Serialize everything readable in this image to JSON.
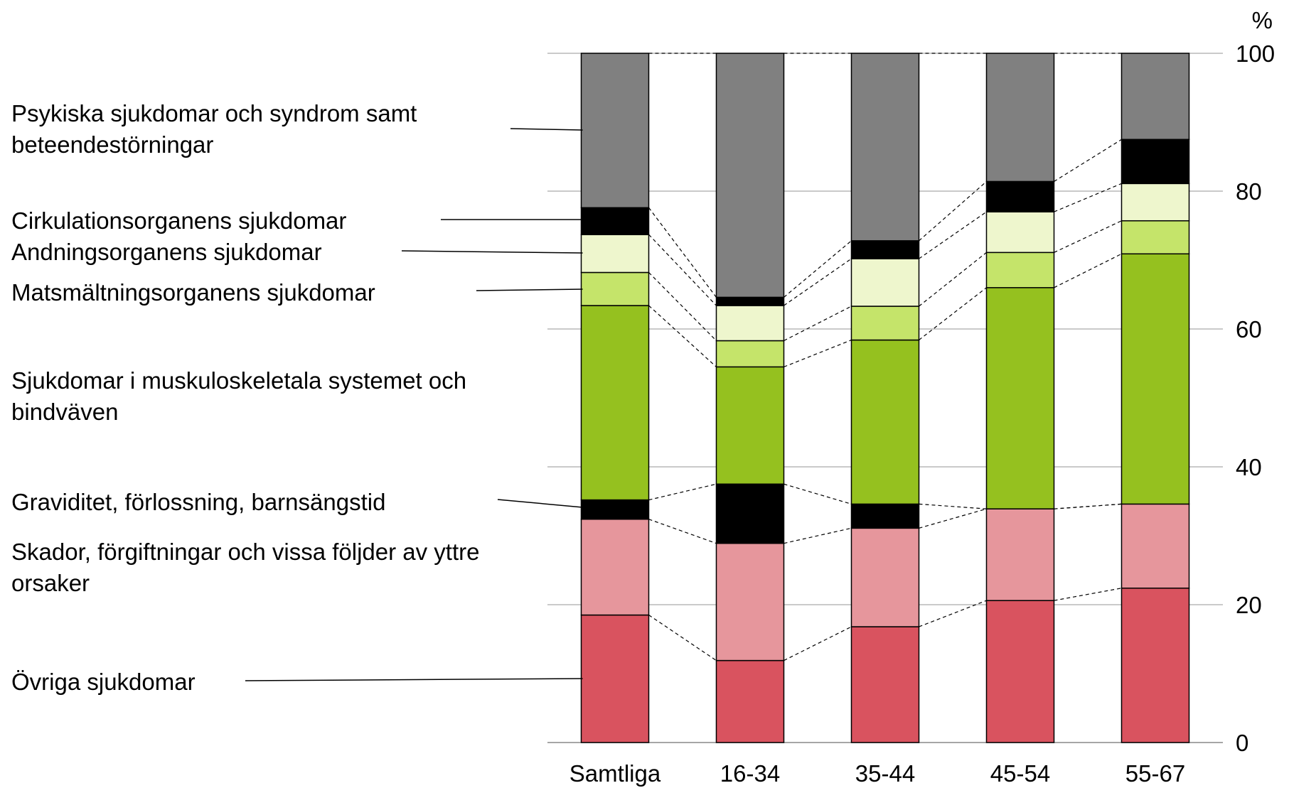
{
  "chart_data": {
    "type": "bar",
    "stacked": true,
    "categories": [
      "Samtliga",
      "16-34",
      "35-44",
      "45-54",
      "55-67"
    ],
    "unit_label": "%",
    "ylim": [
      0,
      100
    ],
    "yticks": [
      0,
      20,
      40,
      60,
      80,
      100
    ],
    "grid": true,
    "legend_placement": "left",
    "series": [
      {
        "name": "Övriga sjukdomar",
        "color": "#d9535f",
        "values": [
          18.5,
          11.9,
          16.8,
          20.6,
          22.4
        ]
      },
      {
        "name": "Skador, förgiftningar och vissa följder av yttre orsaker",
        "color": "#e6969c",
        "values": [
          13.9,
          17.0,
          14.3,
          13.3,
          12.2
        ]
      },
      {
        "name": "Graviditet, förlossning, barnsängstid",
        "color": "#000000",
        "values": [
          2.8,
          8.6,
          3.5,
          0.0,
          0.0
        ]
      },
      {
        "name": "Sjukdomar i muskuloskeletala systemet och bindväven",
        "color": "#95c11f",
        "values": [
          28.2,
          17.0,
          23.8,
          32.1,
          36.3
        ]
      },
      {
        "name": "Matsmältningsorganens sjukdomar",
        "color": "#c5e46a",
        "values": [
          4.8,
          3.8,
          4.9,
          5.1,
          4.8
        ]
      },
      {
        "name": "Andningsorganens sjukdomar",
        "color": "#eef6cd",
        "values": [
          5.5,
          5.1,
          6.9,
          5.9,
          5.4
        ]
      },
      {
        "name": "Cirkulationsorganens sjukdomar",
        "color": "#000000",
        "values": [
          3.9,
          1.2,
          2.6,
          4.4,
          6.4
        ]
      },
      {
        "name": "Psykiska sjukdomar och syndrom samt beteendestörningar",
        "color": "#808080",
        "values": [
          22.4,
          35.4,
          27.2,
          18.6,
          12.5
        ]
      }
    ],
    "legend_labels": [
      {
        "series": 7,
        "lines": [
          "Psykiska sjukdomar och syndrom samt",
          "beteendestörningar"
        ]
      },
      {
        "series": 6,
        "lines": [
          "Cirkulationsorganens sjukdomar"
        ]
      },
      {
        "series": 5,
        "lines": [
          "Andningsorganens sjukdomar"
        ]
      },
      {
        "series": 4,
        "lines": [
          "Matsmältningsorganens sjukdomar"
        ]
      },
      {
        "series": 3,
        "lines": [
          "Sjukdomar i muskuloskeletala systemet och",
          "bindväven"
        ]
      },
      {
        "series": 2,
        "lines": [
          "Graviditet, förlossning, barnsängstid"
        ]
      },
      {
        "series": 1,
        "lines": [
          "Skador, förgiftningar och vissa följder av yttre",
          "orsaker"
        ]
      },
      {
        "series": 0,
        "lines": [
          "Övriga sjukdomar"
        ]
      }
    ]
  }
}
